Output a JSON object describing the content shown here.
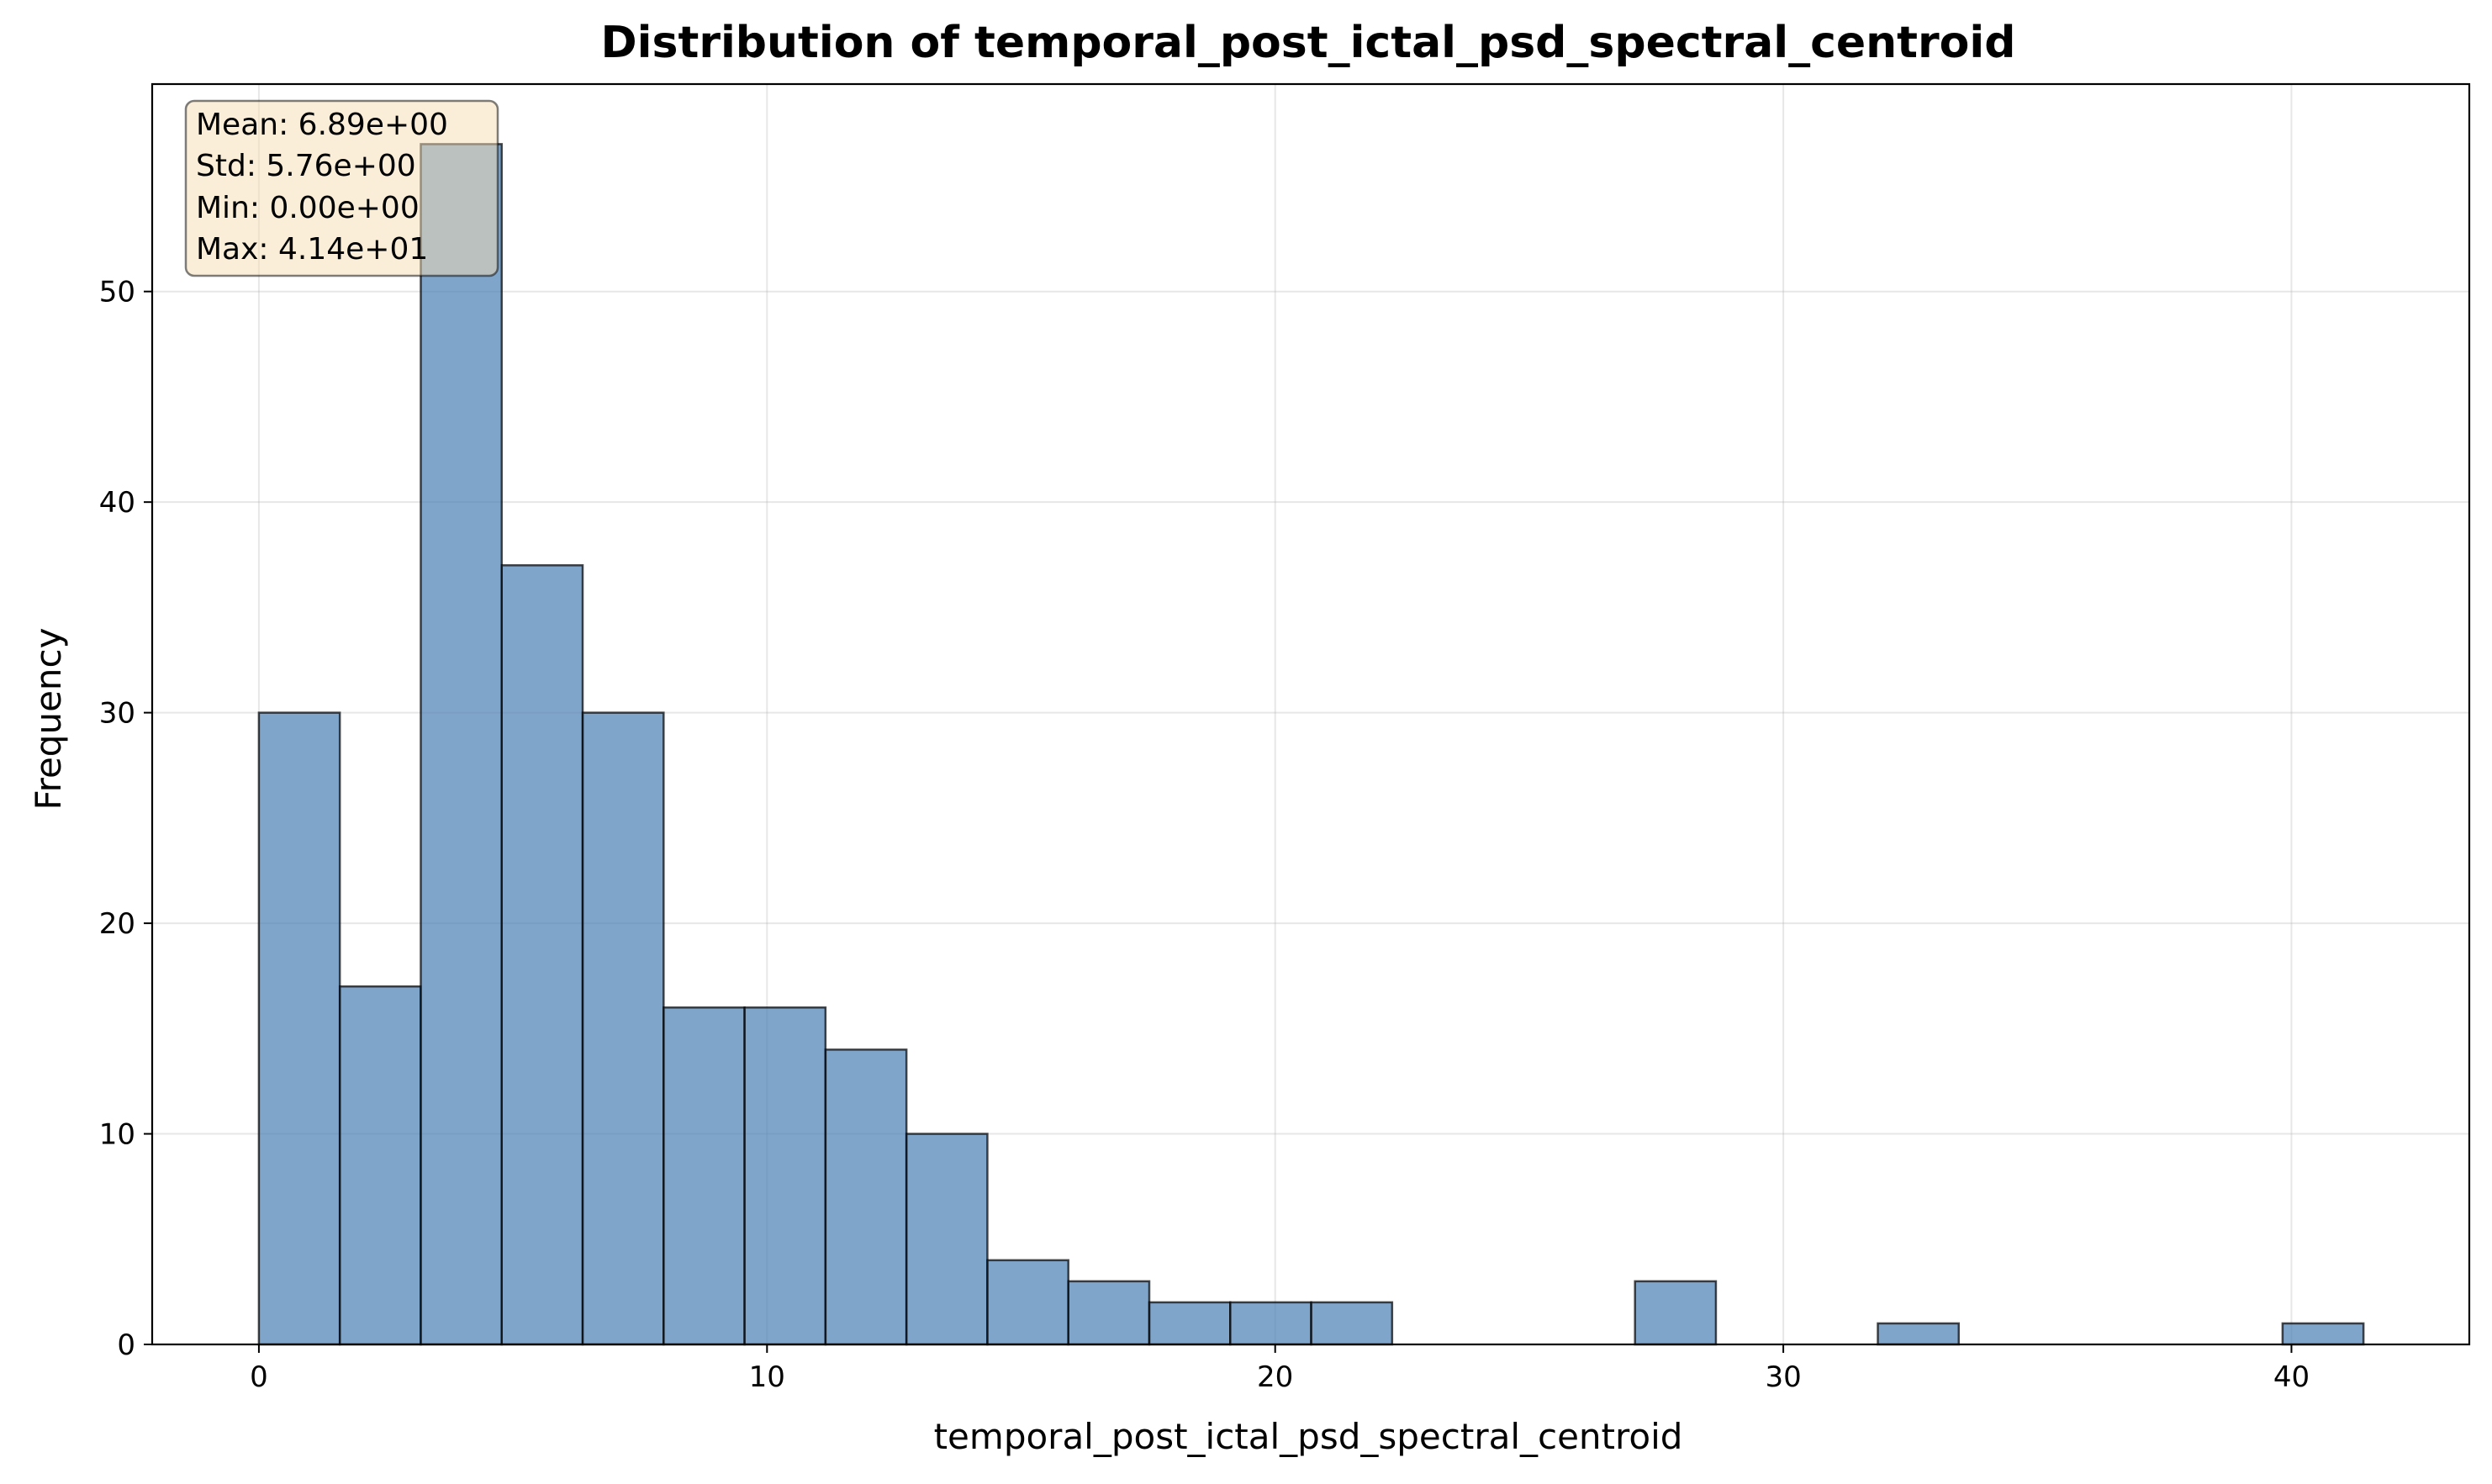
{
  "chart_data": {
    "type": "bar",
    "title": "Distribution of temporal_post_ictal_psd_spectral_centroid",
    "xlabel": "temporal_post_ictal_psd_spectral_centroid",
    "ylabel": "Frequency",
    "xlim": [
      -2.1,
      43.5
    ],
    "ylim": [
      0,
      59.85
    ],
    "x_ticks": [
      0,
      10,
      20,
      30,
      40
    ],
    "y_ticks": [
      0,
      10,
      20,
      30,
      40,
      50
    ],
    "grid": true,
    "bin_edges": [
      0.0,
      1.593,
      3.186,
      4.779,
      6.372,
      7.965,
      9.558,
      11.151,
      12.744,
      14.337,
      15.93,
      17.523,
      19.116,
      20.709,
      22.302,
      23.895,
      25.488,
      27.081,
      28.674,
      30.267,
      31.86,
      33.453,
      35.046,
      36.639,
      38.232,
      39.825,
      41.418
    ],
    "values": [
      30,
      17,
      57,
      37,
      30,
      16,
      16,
      14,
      10,
      4,
      3,
      2,
      2,
      2,
      0,
      0,
      0,
      3,
      0,
      0,
      1,
      0,
      0,
      0,
      0,
      1
    ],
    "bar_color": "#4a7fb5",
    "bar_edge_color": "#000000",
    "stats_box": {
      "lines": [
        "Mean: 6.89e+00",
        "Std: 5.76e+00",
        "Min: 0.00e+00",
        "Max: 4.14e+01"
      ],
      "background": "#f5deb3",
      "placement": "top-left"
    }
  }
}
